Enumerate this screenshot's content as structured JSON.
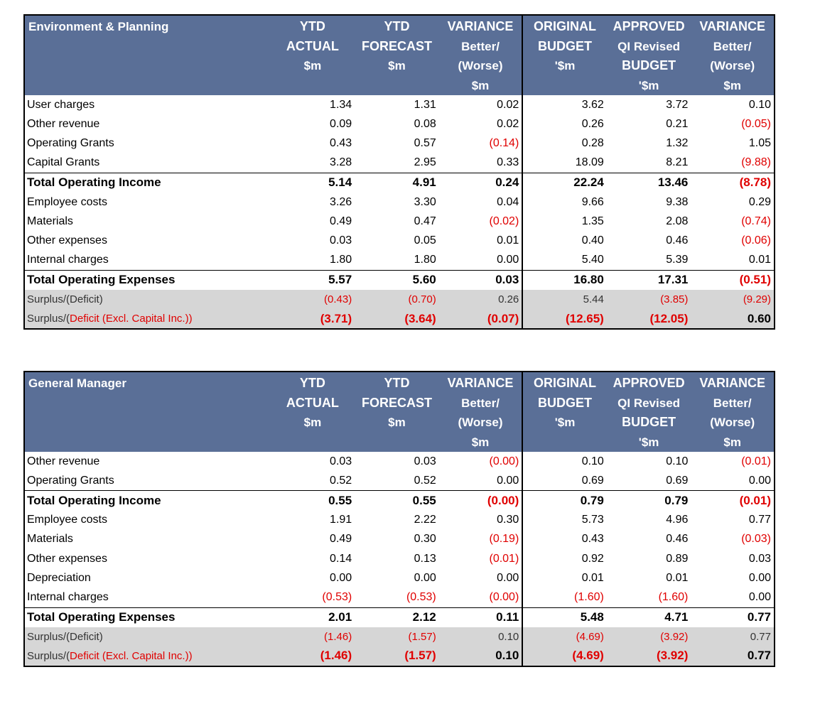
{
  "headers": {
    "ytd_actual": [
      "YTD",
      "ACTUAL",
      "$m"
    ],
    "ytd_forecast": [
      "YTD",
      "FORECAST",
      "$m"
    ],
    "variance1": [
      "VARIANCE",
      "Better/",
      "(Worse)",
      "$m"
    ],
    "original_budget": [
      "ORIGINAL",
      "BUDGET",
      "'$m"
    ],
    "approved": [
      "APPROVED",
      "QI Revised",
      "BUDGET",
      "'$m"
    ],
    "variance2": [
      "VARIANCE",
      "Better/",
      "(Worse)",
      "$m"
    ]
  },
  "tables": [
    {
      "title": "Environment & Planning",
      "rows": [
        {
          "type": "line",
          "label": "User charges",
          "values": [
            "1.34",
            "1.31",
            "0.02",
            "3.62",
            "3.72",
            "0.10"
          ]
        },
        {
          "type": "line",
          "label": "Other revenue",
          "values": [
            "0.09",
            "0.08",
            "0.02",
            "0.26",
            "0.21",
            "(0.05)"
          ]
        },
        {
          "type": "line",
          "label": "Operating Grants",
          "values": [
            "0.43",
            "0.57",
            "(0.14)",
            "0.28",
            "1.32",
            "1.05"
          ]
        },
        {
          "type": "line",
          "label": "Capital Grants",
          "values": [
            "3.28",
            "2.95",
            "0.33",
            "18.09",
            "8.21",
            "(9.88)"
          ]
        },
        {
          "type": "total",
          "label": "Total Operating Income",
          "values": [
            "5.14",
            "4.91",
            "0.24",
            "22.24",
            "13.46",
            "(8.78)"
          ]
        },
        {
          "type": "line",
          "label": "Employee costs",
          "values": [
            "3.26",
            "3.30",
            "0.04",
            "9.66",
            "9.38",
            "0.29"
          ]
        },
        {
          "type": "line",
          "label": "Materials",
          "values": [
            "0.49",
            "0.47",
            "(0.02)",
            "1.35",
            "2.08",
            "(0.74)"
          ]
        },
        {
          "type": "line",
          "label": "Other expenses",
          "values": [
            "0.03",
            "0.05",
            "0.01",
            "0.40",
            "0.46",
            "(0.06)"
          ]
        },
        {
          "type": "line",
          "label": "Internal charges",
          "values": [
            "1.80",
            "1.80",
            "0.00",
            "5.40",
            "5.39",
            "0.01"
          ]
        },
        {
          "type": "total",
          "label": "Total Operating Expenses",
          "values": [
            "5.57",
            "5.60",
            "0.03",
            "16.80",
            "17.31",
            "(0.51)"
          ]
        },
        {
          "type": "surplus",
          "label": "Surplus/(Deficit)",
          "values": [
            "(0.43)",
            "(0.70)",
            "0.26",
            "5.44",
            "(3.85)",
            "(9.29)"
          ]
        },
        {
          "type": "surplus-bold",
          "label_black": "Surplus/(",
          "label_red": "Deficit (Excl. Capital Inc.))",
          "values": [
            "(3.71)",
            "(3.64)",
            "(0.07)",
            "(12.65)",
            "(12.05)",
            "0.60"
          ]
        }
      ]
    },
    {
      "title": "General Manager",
      "rows": [
        {
          "type": "line",
          "label": "Other revenue",
          "values": [
            "0.03",
            "0.03",
            "(0.00)",
            "0.10",
            "0.10",
            "(0.01)"
          ]
        },
        {
          "type": "line",
          "label": "Operating Grants",
          "values": [
            "0.52",
            "0.52",
            "0.00",
            "0.69",
            "0.69",
            "0.00"
          ]
        },
        {
          "type": "total",
          "label": "Total Operating Income",
          "values": [
            "0.55",
            "0.55",
            "(0.00)",
            "0.79",
            "0.79",
            "(0.01)"
          ]
        },
        {
          "type": "line",
          "label": "Employee costs",
          "values": [
            "1.91",
            "2.22",
            "0.30",
            "5.73",
            "4.96",
            "0.77"
          ]
        },
        {
          "type": "line",
          "label": "Materials",
          "values": [
            "0.49",
            "0.30",
            "(0.19)",
            "0.43",
            "0.46",
            "(0.03)"
          ]
        },
        {
          "type": "line",
          "label": "Other expenses",
          "values": [
            "0.14",
            "0.13",
            "(0.01)",
            "0.92",
            "0.89",
            "0.03"
          ]
        },
        {
          "type": "line",
          "label": "Depreciation",
          "values": [
            "0.00",
            "0.00",
            "0.00",
            "0.01",
            "0.01",
            "0.00"
          ]
        },
        {
          "type": "line",
          "label": "Internal charges",
          "values": [
            "(0.53)",
            "(0.53)",
            "(0.00)",
            "(1.60)",
            "(1.60)",
            "0.00"
          ]
        },
        {
          "type": "total",
          "label": "Total Operating Expenses",
          "values": [
            "2.01",
            "2.12",
            "0.11",
            "5.48",
            "4.71",
            "0.77"
          ]
        },
        {
          "type": "surplus",
          "label": "Surplus/(Deficit)",
          "values": [
            "(1.46)",
            "(1.57)",
            "0.10",
            "(4.69)",
            "(3.92)",
            "0.77"
          ]
        },
        {
          "type": "surplus-bold",
          "label_black": "Surplus/(",
          "label_red": "Deficit (Excl. Capital Inc.))",
          "values": [
            "(1.46)",
            "(1.57)",
            "0.10",
            "(4.69)",
            "(3.92)",
            "0.77"
          ]
        }
      ]
    }
  ],
  "colors": {
    "header_bg": "#5a6f97",
    "header_text": "#ffffff",
    "negative": "#e00000",
    "surplus_bg": "#d6d6d6"
  }
}
